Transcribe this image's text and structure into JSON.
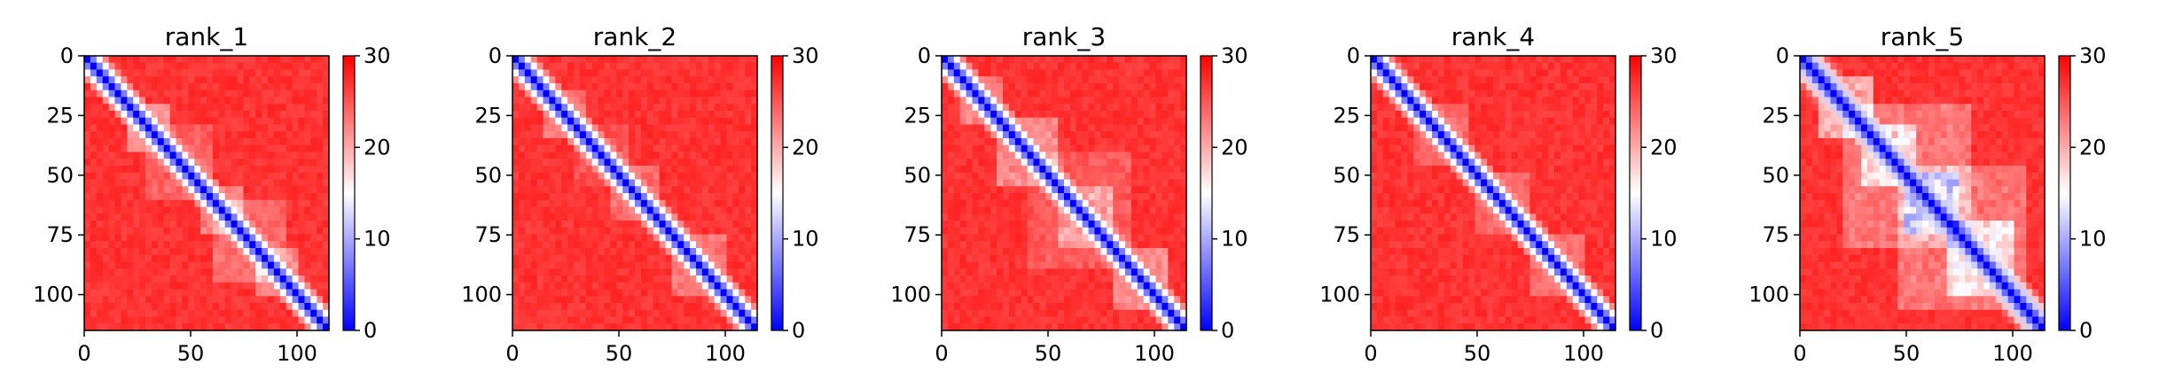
{
  "chart_data": [
    {
      "type": "heatmap",
      "title": "rank_1",
      "xlim": [
        0,
        115
      ],
      "ylim": [
        115,
        0
      ],
      "x_ticks": [
        0,
        50,
        100
      ],
      "y_ticks": [
        0,
        25,
        50,
        75,
        100
      ],
      "colorbar": {
        "min": 0,
        "max": 30,
        "ticks": [
          0,
          10,
          20,
          30
        ],
        "colormap": "bwr"
      },
      "diagonal_band": {
        "width": 5,
        "start_offset": 3
      },
      "blocks": [
        [
          20,
          40,
          0.5
        ],
        [
          55,
          75,
          0.4
        ],
        [
          80,
          100,
          0.45
        ],
        [
          30,
          60,
          0.25
        ],
        [
          60,
          95,
          0.3
        ]
      ]
    },
    {
      "type": "heatmap",
      "title": "rank_2",
      "xlim": [
        0,
        115
      ],
      "ylim": [
        115,
        0
      ],
      "x_ticks": [
        0,
        50,
        100
      ],
      "y_ticks": [
        0,
        25,
        50,
        75,
        100
      ],
      "colorbar": {
        "min": 0,
        "max": 30,
        "ticks": [
          0,
          10,
          20,
          30
        ],
        "colormap": "bwr"
      },
      "diagonal_band": {
        "width": 5,
        "start_offset": 3
      },
      "blocks": [
        [
          15,
          35,
          0.35
        ],
        [
          45,
          70,
          0.3
        ],
        [
          75,
          100,
          0.35
        ],
        [
          30,
          55,
          0.15
        ]
      ]
    },
    {
      "type": "heatmap",
      "title": "rank_3",
      "xlim": [
        0,
        115
      ],
      "ylim": [
        115,
        0
      ],
      "x_ticks": [
        0,
        50,
        100
      ],
      "y_ticks": [
        0,
        25,
        50,
        75,
        100
      ],
      "colorbar": {
        "min": 0,
        "max": 30,
        "ticks": [
          0,
          10,
          20,
          30
        ],
        "colormap": "bwr"
      },
      "diagonal_band": {
        "width": 5,
        "start_offset": 3
      },
      "blocks": [
        [
          10,
          30,
          0.4
        ],
        [
          25,
          55,
          0.45
        ],
        [
          55,
          80,
          0.4
        ],
        [
          80,
          105,
          0.45
        ],
        [
          40,
          90,
          0.2
        ]
      ]
    },
    {
      "type": "heatmap",
      "title": "rank_4",
      "xlim": [
        0,
        115
      ],
      "ylim": [
        115,
        0
      ],
      "x_ticks": [
        0,
        50,
        100
      ],
      "y_ticks": [
        0,
        25,
        50,
        75,
        100
      ],
      "colorbar": {
        "min": 0,
        "max": 30,
        "ticks": [
          0,
          10,
          20,
          30
        ],
        "colormap": "bwr"
      },
      "diagonal_band": {
        "width": 5,
        "start_offset": 3
      },
      "blocks": [
        [
          20,
          45,
          0.25
        ],
        [
          50,
          75,
          0.25
        ],
        [
          75,
          100,
          0.3
        ]
      ]
    },
    {
      "type": "heatmap",
      "title": "rank_5",
      "xlim": [
        0,
        115
      ],
      "ylim": [
        115,
        0
      ],
      "x_ticks": [
        0,
        50,
        100
      ],
      "y_ticks": [
        0,
        25,
        50,
        75,
        100
      ],
      "colorbar": {
        "min": 0,
        "max": 30,
        "ticks": [
          0,
          10,
          20,
          30
        ],
        "colormap": "bwr"
      },
      "diagonal_band": {
        "width": 6,
        "start_offset": 3
      },
      "blocks": [
        [
          10,
          35,
          0.6
        ],
        [
          30,
          55,
          0.55
        ],
        [
          50,
          75,
          0.55
        ],
        [
          70,
          100,
          0.6
        ],
        [
          20,
          80,
          0.35
        ],
        [
          45,
          105,
          0.35
        ]
      ]
    }
  ]
}
